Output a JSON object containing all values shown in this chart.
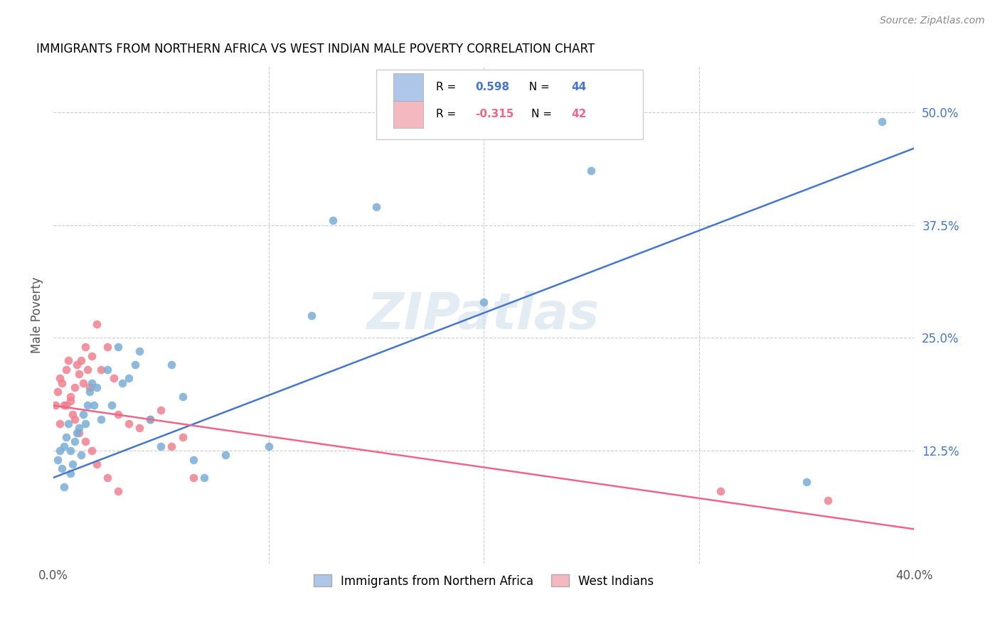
{
  "title": "IMMIGRANTS FROM NORTHERN AFRICA VS WEST INDIAN MALE POVERTY CORRELATION CHART",
  "source": "Source: ZipAtlas.com",
  "ylabel": "Male Poverty",
  "right_yticks": [
    "50.0%",
    "37.5%",
    "25.0%",
    "12.5%"
  ],
  "right_ytick_vals": [
    0.5,
    0.375,
    0.25,
    0.125
  ],
  "xlim": [
    0.0,
    0.4
  ],
  "ylim": [
    0.0,
    0.55
  ],
  "watermark": "ZIPatlas",
  "legend_color1": "#aec6e8",
  "legend_color2": "#f4b8c1",
  "scatter_color1": "#7aadd4",
  "scatter_color2": "#f08090",
  "line_color1": "#4477cc",
  "line_color2": "#ee6688",
  "blue_line_x": [
    0.0,
    0.4
  ],
  "blue_line_y": [
    0.095,
    0.46
  ],
  "pink_line_x": [
    0.0,
    0.4
  ],
  "pink_line_y": [
    0.175,
    0.038
  ],
  "blue_scatter_x": [
    0.002,
    0.003,
    0.004,
    0.005,
    0.006,
    0.007,
    0.008,
    0.009,
    0.01,
    0.011,
    0.012,
    0.013,
    0.014,
    0.015,
    0.016,
    0.017,
    0.018,
    0.019,
    0.02,
    0.022,
    0.025,
    0.027,
    0.03,
    0.032,
    0.035,
    0.038,
    0.04,
    0.045,
    0.05,
    0.055,
    0.06,
    0.065,
    0.07,
    0.08,
    0.1,
    0.12,
    0.13,
    0.15,
    0.2,
    0.25,
    0.35,
    0.385,
    0.005,
    0.008
  ],
  "blue_scatter_y": [
    0.115,
    0.125,
    0.105,
    0.13,
    0.14,
    0.155,
    0.125,
    0.11,
    0.135,
    0.145,
    0.15,
    0.12,
    0.165,
    0.155,
    0.175,
    0.19,
    0.2,
    0.175,
    0.195,
    0.16,
    0.215,
    0.175,
    0.24,
    0.2,
    0.205,
    0.22,
    0.235,
    0.16,
    0.13,
    0.22,
    0.185,
    0.115,
    0.095,
    0.12,
    0.13,
    0.275,
    0.38,
    0.395,
    0.29,
    0.435,
    0.09,
    0.49,
    0.085,
    0.1
  ],
  "pink_scatter_x": [
    0.001,
    0.002,
    0.003,
    0.004,
    0.005,
    0.006,
    0.007,
    0.008,
    0.009,
    0.01,
    0.011,
    0.012,
    0.013,
    0.014,
    0.015,
    0.016,
    0.017,
    0.018,
    0.02,
    0.022,
    0.025,
    0.028,
    0.03,
    0.035,
    0.04,
    0.045,
    0.05,
    0.055,
    0.06,
    0.065,
    0.003,
    0.006,
    0.008,
    0.01,
    0.012,
    0.015,
    0.018,
    0.02,
    0.025,
    0.03,
    0.31,
    0.36
  ],
  "pink_scatter_y": [
    0.175,
    0.19,
    0.205,
    0.2,
    0.175,
    0.215,
    0.225,
    0.18,
    0.165,
    0.195,
    0.22,
    0.21,
    0.225,
    0.2,
    0.24,
    0.215,
    0.195,
    0.23,
    0.265,
    0.215,
    0.24,
    0.205,
    0.165,
    0.155,
    0.15,
    0.16,
    0.17,
    0.13,
    0.14,
    0.095,
    0.155,
    0.175,
    0.185,
    0.16,
    0.145,
    0.135,
    0.125,
    0.11,
    0.095,
    0.08,
    0.08,
    0.07
  ]
}
